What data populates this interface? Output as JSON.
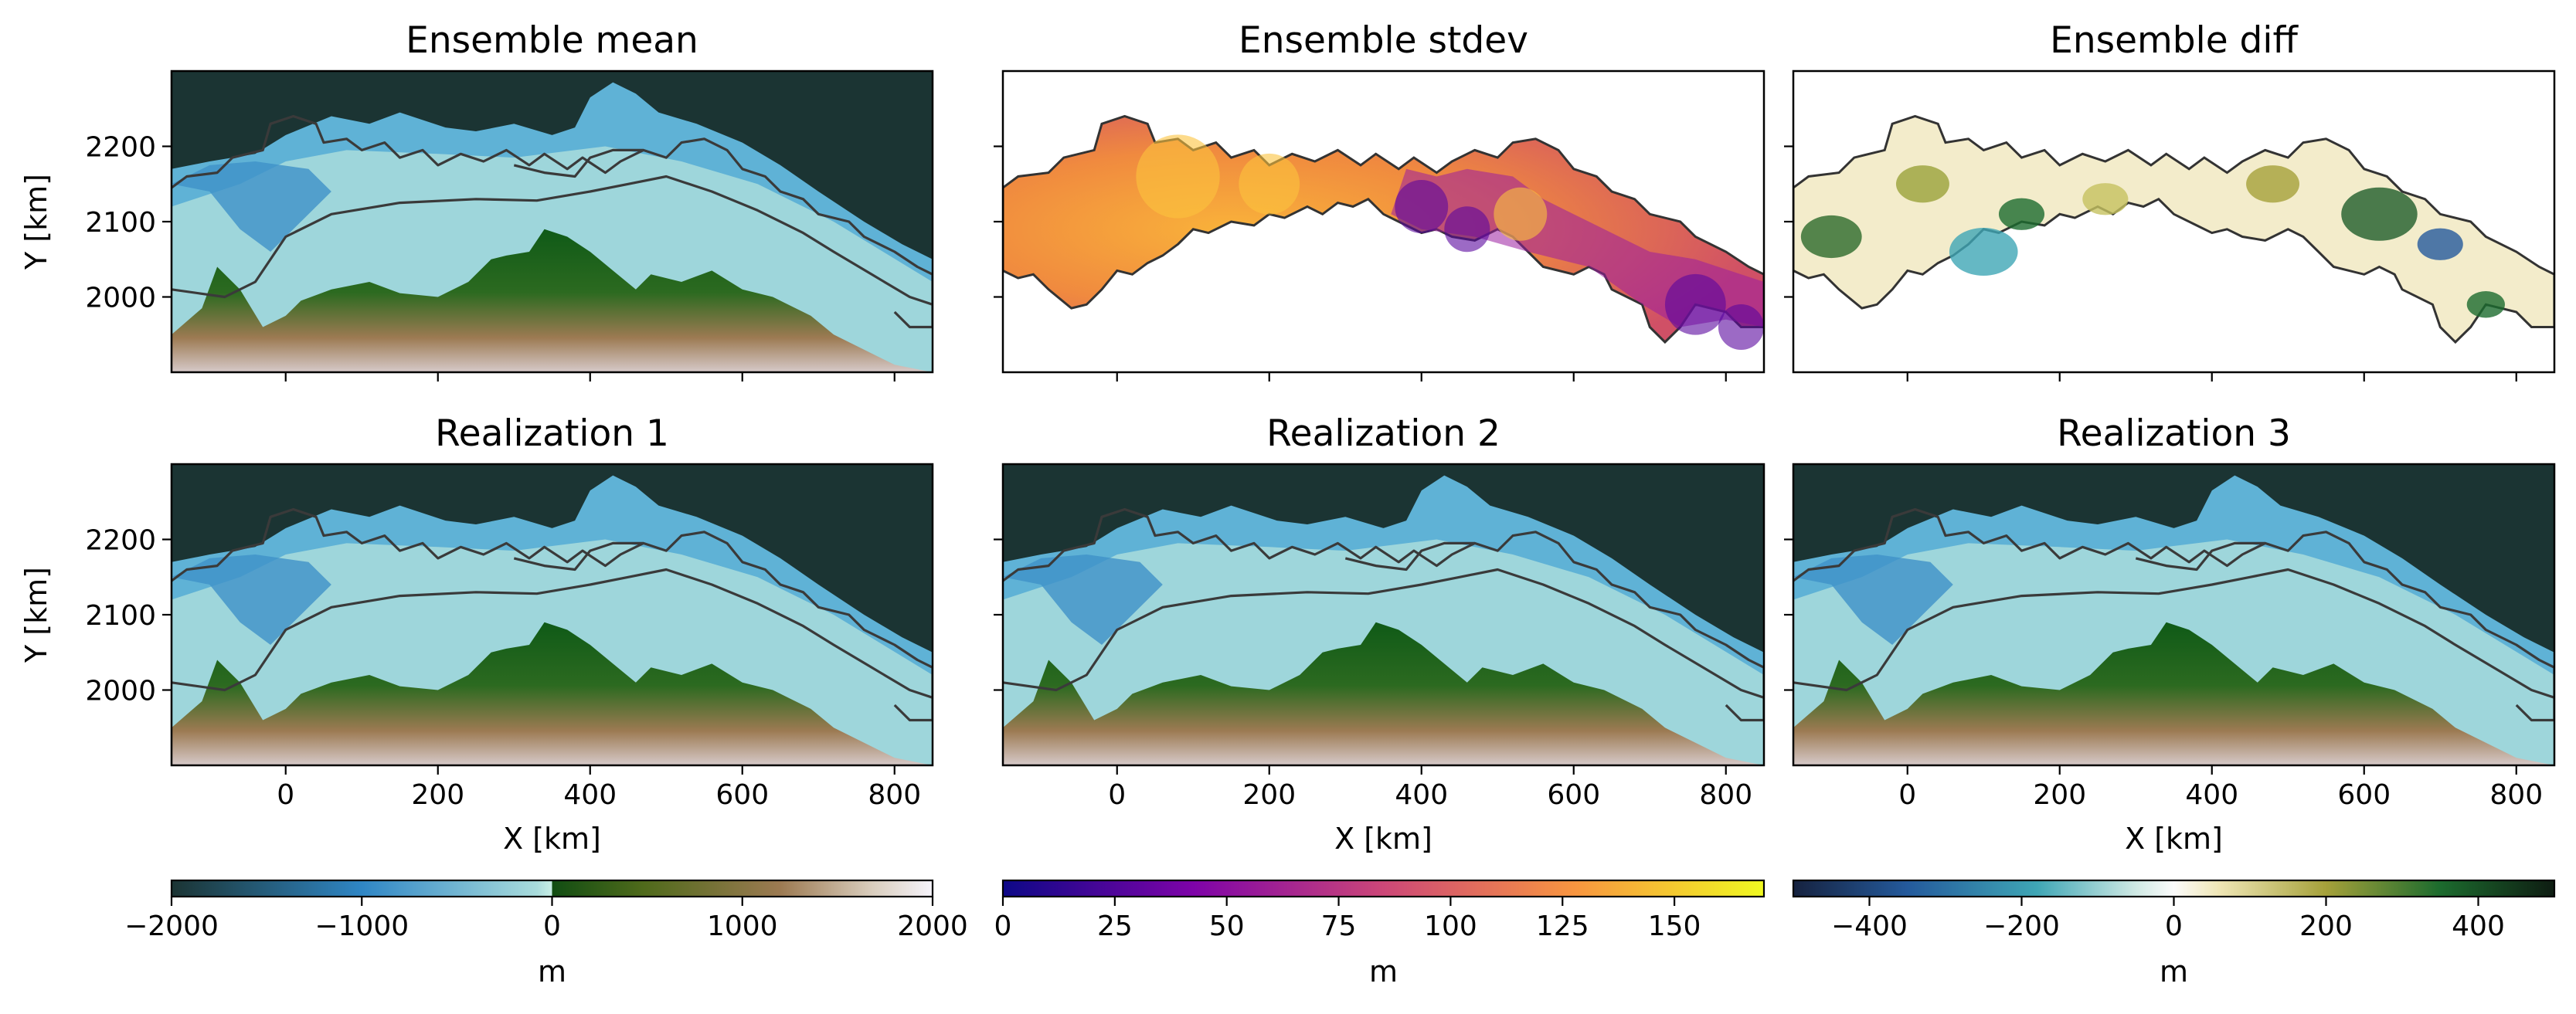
{
  "panels": [
    {
      "title": "Ensemble mean",
      "cmap": "topo"
    },
    {
      "title": "Ensemble stdev",
      "cmap": "plasma"
    },
    {
      "title": "Ensemble diff",
      "cmap": "diverging"
    },
    {
      "title": "Realization 1",
      "cmap": "topo"
    },
    {
      "title": "Realization 2",
      "cmap": "topo"
    },
    {
      "title": "Realization 3",
      "cmap": "topo"
    }
  ],
  "chart_data": {
    "type": "heatmap",
    "xlabel": "X [km]",
    "ylabel": "Y [km]",
    "xlim": [
      -150,
      850
    ],
    "ylim": [
      1900,
      2300
    ],
    "xticks": [
      0,
      200,
      400,
      600,
      800
    ],
    "yticks": [
      2000,
      2100,
      2200
    ],
    "colorbars": [
      {
        "label": "m",
        "range": [
          -2000,
          2000
        ],
        "ticks": [
          -2000,
          -1000,
          0,
          1000,
          2000
        ],
        "tick_labels": [
          "−2000",
          "−1000",
          "0",
          "1000",
          "2000"
        ]
      },
      {
        "label": "m",
        "range": [
          0,
          170
        ],
        "ticks": [
          0,
          25,
          50,
          75,
          100,
          125,
          150
        ],
        "tick_labels": [
          "0",
          "25",
          "50",
          "75",
          "100",
          "125",
          "150"
        ]
      },
      {
        "label": "m",
        "range": [
          -500,
          500
        ],
        "ticks": [
          -400,
          -200,
          0,
          200,
          400
        ],
        "tick_labels": [
          "−400",
          "−200",
          "0",
          "200",
          "400"
        ]
      }
    ]
  },
  "colors": {
    "ocean_deep": "#1b3433",
    "ice_shelf": "#a9dcdc",
    "land_green": "#0f5a17",
    "land_brown": "#9c7a52",
    "land_snow": "#f1eef8",
    "outline": "#3a3a3a"
  }
}
